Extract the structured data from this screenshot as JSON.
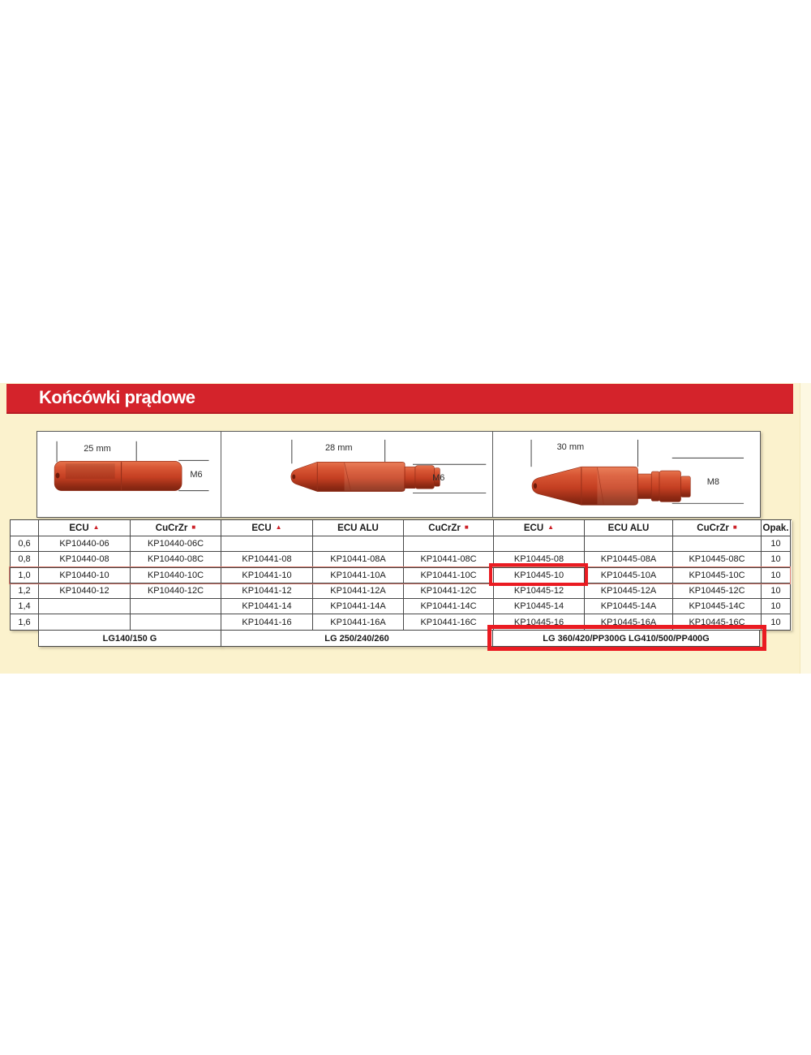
{
  "banner": {
    "title": "Końcówki prądowe",
    "color": "#d4232b"
  },
  "panels": [
    {
      "name": "contact-tip-25mm",
      "length_label": "25 mm",
      "thread_label": "M6"
    },
    {
      "name": "contact-tip-28mm",
      "length_label": "28 mm",
      "thread_label": "M6"
    },
    {
      "name": "contact-tip-30mm",
      "length_label": "30 mm",
      "thread_label": "M8"
    }
  ],
  "table": {
    "marker_color": "#cc2128",
    "columns": [
      {
        "label": "",
        "marker": ""
      },
      {
        "label": "ECU",
        "marker": "triangle"
      },
      {
        "label": "CuCrZr",
        "marker": "square"
      },
      {
        "label": "ECU",
        "marker": "triangle"
      },
      {
        "label": "ECU ALU",
        "marker": ""
      },
      {
        "label": "CuCrZr",
        "marker": "square"
      },
      {
        "label": "ECU",
        "marker": "triangle"
      },
      {
        "label": "ECU ALU",
        "marker": ""
      },
      {
        "label": "CuCrZr",
        "marker": "square"
      },
      {
        "label": "Opak.",
        "marker": ""
      }
    ],
    "rows": [
      {
        "size": "0,6",
        "cells": [
          "KP10440-06",
          "KP10440-06C",
          "",
          "",
          "",
          "",
          "",
          ""
        ],
        "opak": "10"
      },
      {
        "size": "0,8",
        "cells": [
          "KP10440-08",
          "KP10440-08C",
          "KP10441-08",
          "KP10441-08A",
          "KP10441-08C",
          "KP10445-08",
          "KP10445-08A",
          "KP10445-08C"
        ],
        "opak": "10"
      },
      {
        "size": "1,0",
        "cells": [
          "KP10440-10",
          "KP10440-10C",
          "KP10441-10",
          "KP10441-10A",
          "KP10441-10C",
          "KP10445-10",
          "KP10445-10A",
          "KP10445-10C"
        ],
        "opak": "10"
      },
      {
        "size": "1,2",
        "cells": [
          "KP10440-12",
          "KP10440-12C",
          "KP10441-12",
          "KP10441-12A",
          "KP10441-12C",
          "KP10445-12",
          "KP10445-12A",
          "KP10445-12C"
        ],
        "opak": "10"
      },
      {
        "size": "1,4",
        "cells": [
          "",
          "",
          "KP10441-14",
          "KP10441-14A",
          "KP10441-14C",
          "KP10445-14",
          "KP10445-14A",
          "KP10445-14C"
        ],
        "opak": "10"
      },
      {
        "size": "1,6",
        "cells": [
          "",
          "",
          "KP10441-16",
          "KP10441-16A",
          "KP10441-16C",
          "KP10445-16",
          "KP10445-16A",
          "KP10445-16C"
        ],
        "opak": "10"
      }
    ],
    "footer": [
      "LG140/150 G",
      "LG 250/240/260",
      "LG 360/420/PP300G LG410/500/PP400G"
    ],
    "highlighted_part": "KP10445-10",
    "highlighted_footer": "LG 360/420/PP300G LG410/500/PP400G"
  }
}
